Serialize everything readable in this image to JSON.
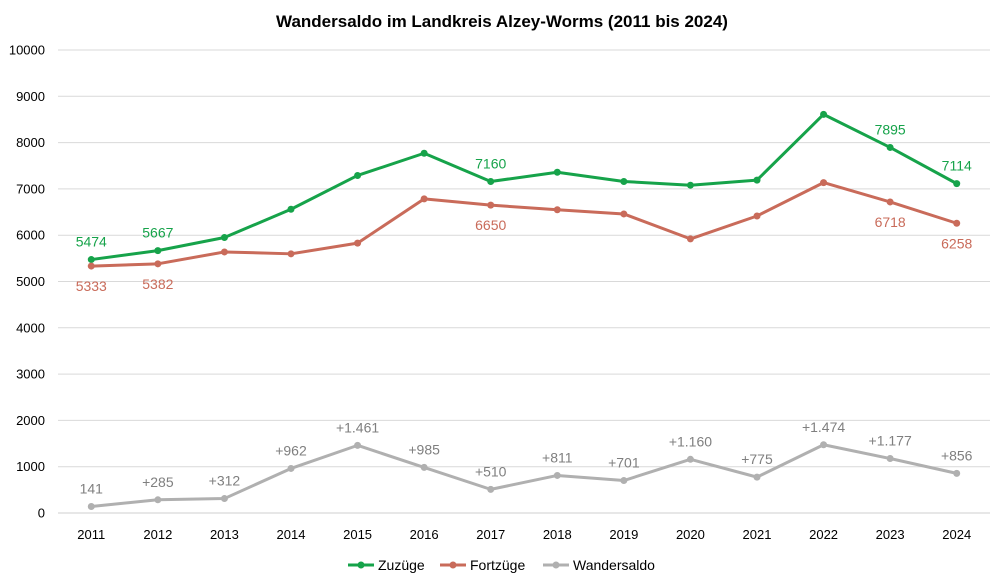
{
  "chart_data": {
    "type": "line",
    "title": "Wandersaldo im Landkreis Alzey-Worms (2011 bis 2024)",
    "categories": [
      "2011",
      "2012",
      "2013",
      "2014",
      "2015",
      "2016",
      "2017",
      "2018",
      "2019",
      "2020",
      "2021",
      "2022",
      "2023",
      "2024"
    ],
    "ylim": [
      0,
      10000
    ],
    "yticks": [
      "0",
      "1000",
      "2000",
      "3000",
      "4000",
      "5000",
      "6000",
      "7000",
      "8000",
      "9000",
      "10000"
    ],
    "grid": true,
    "legend_position": "bottom",
    "series": [
      {
        "name": "Zuzüge",
        "color": "#16a34a",
        "values": [
          5474,
          5667,
          5950,
          6560,
          7290,
          7770,
          7160,
          7360,
          7160,
          7080,
          7190,
          8610,
          7895,
          7114
        ],
        "labels": [
          "5474",
          "5667",
          "",
          "",
          "",
          "",
          "7160",
          "",
          "",
          "",
          "",
          "",
          "7895",
          "7114"
        ]
      },
      {
        "name": "Fortzüge",
        "color": "#c96b5a",
        "values": [
          5333,
          5382,
          5638,
          5598,
          5829,
          6785,
          6650,
          6549,
          6459,
          5920,
          6415,
          7136,
          6718,
          6258
        ],
        "labels": [
          "5333",
          "5382",
          "",
          "",
          "",
          "",
          "6650",
          "",
          "",
          "",
          "",
          "",
          "6718",
          "6258"
        ]
      },
      {
        "name": "Wandersaldo",
        "color": "#b0b0b0",
        "label_color": "#7f7f7f",
        "values": [
          141,
          285,
          312,
          962,
          1461,
          985,
          510,
          811,
          701,
          1160,
          775,
          1474,
          1177,
          856
        ],
        "labels": [
          "141",
          "+285",
          "+312",
          "+962",
          "+1.461",
          "+985",
          "+510",
          "+811",
          "+701",
          "+1.160",
          "+775",
          "+1.474",
          "+1.177",
          "+856"
        ]
      }
    ]
  }
}
